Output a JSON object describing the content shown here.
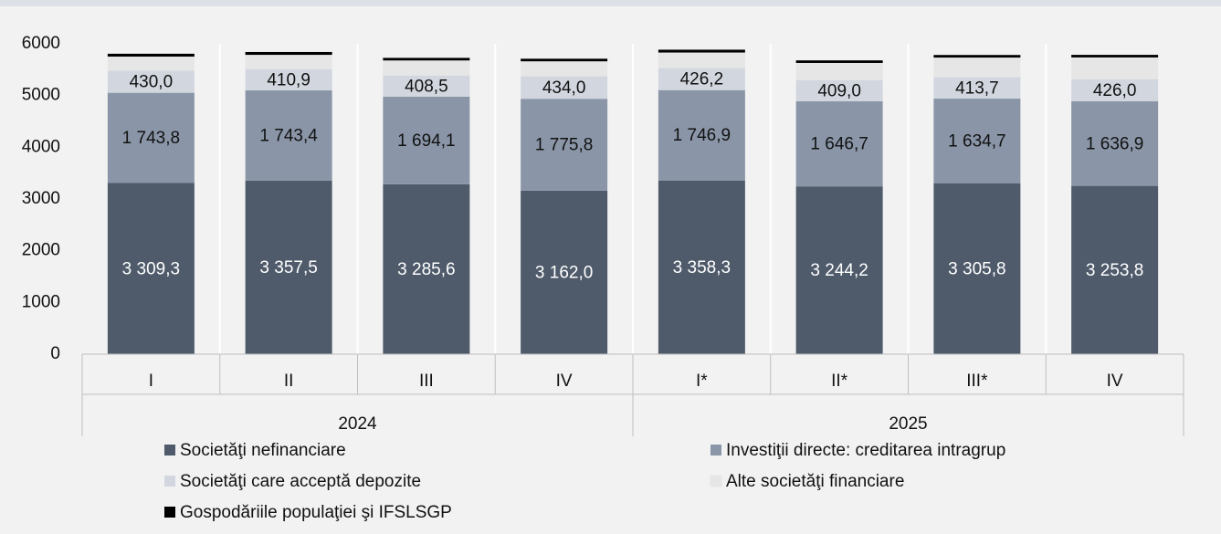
{
  "chart_data": {
    "type": "stacked_bar",
    "categories": [
      "I",
      "II",
      "III",
      "IV",
      "I*",
      "II*",
      "III*",
      "IV"
    ],
    "groups": [
      "2024",
      "2025"
    ],
    "ylim": [
      0,
      6000
    ],
    "yticks": [
      0,
      1000,
      2000,
      3000,
      4000,
      5000,
      6000
    ],
    "series": [
      {
        "name": "Societăţi nefinanciare",
        "color": "#4f5b6b",
        "values": [
          3309.3,
          3357.5,
          3285.6,
          3162.0,
          3358.3,
          3244.2,
          3305.8,
          3253.8
        ],
        "value_labels": [
          "3 309,3",
          "3 357,5",
          "3 285,6",
          "3 162,0",
          "3 358,3",
          "3 244,2",
          "3 305,8",
          "3 253,8"
        ]
      },
      {
        "name": "Investiţii directe: creditarea intragrup",
        "color": "#8a96a8",
        "values": [
          1743.8,
          1743.4,
          1694.1,
          1775.8,
          1746.9,
          1646.7,
          1634.7,
          1636.9
        ],
        "value_labels": [
          "1 743,8",
          "1 743,4",
          "1 694,1",
          "1 775,8",
          "1 746,9",
          "1 646,7",
          "1 634,7",
          "1 636,9"
        ]
      },
      {
        "name": "Societăţi care acceptă depozite",
        "color": "#d2d7df",
        "values": [
          430.0,
          410.9,
          408.5,
          434.0,
          426.2,
          409.0,
          413.7,
          426.0
        ],
        "value_labels": [
          "430,0",
          "410,9",
          "408,5",
          "434,0",
          "426,2",
          "409,0",
          "413,7",
          "426,0"
        ]
      },
      {
        "name": "Alte societăţi financiare",
        "color": "#e6e6e6",
        "values": [
          270,
          275,
          290,
          290,
          300,
          330,
          380,
          420
        ]
      },
      {
        "name": "Gospodăriile populaţiei şi IFSLSGP",
        "color": "#000000",
        "values": [
          55,
          55,
          50,
          50,
          55,
          50,
          50,
          50
        ]
      }
    ]
  }
}
